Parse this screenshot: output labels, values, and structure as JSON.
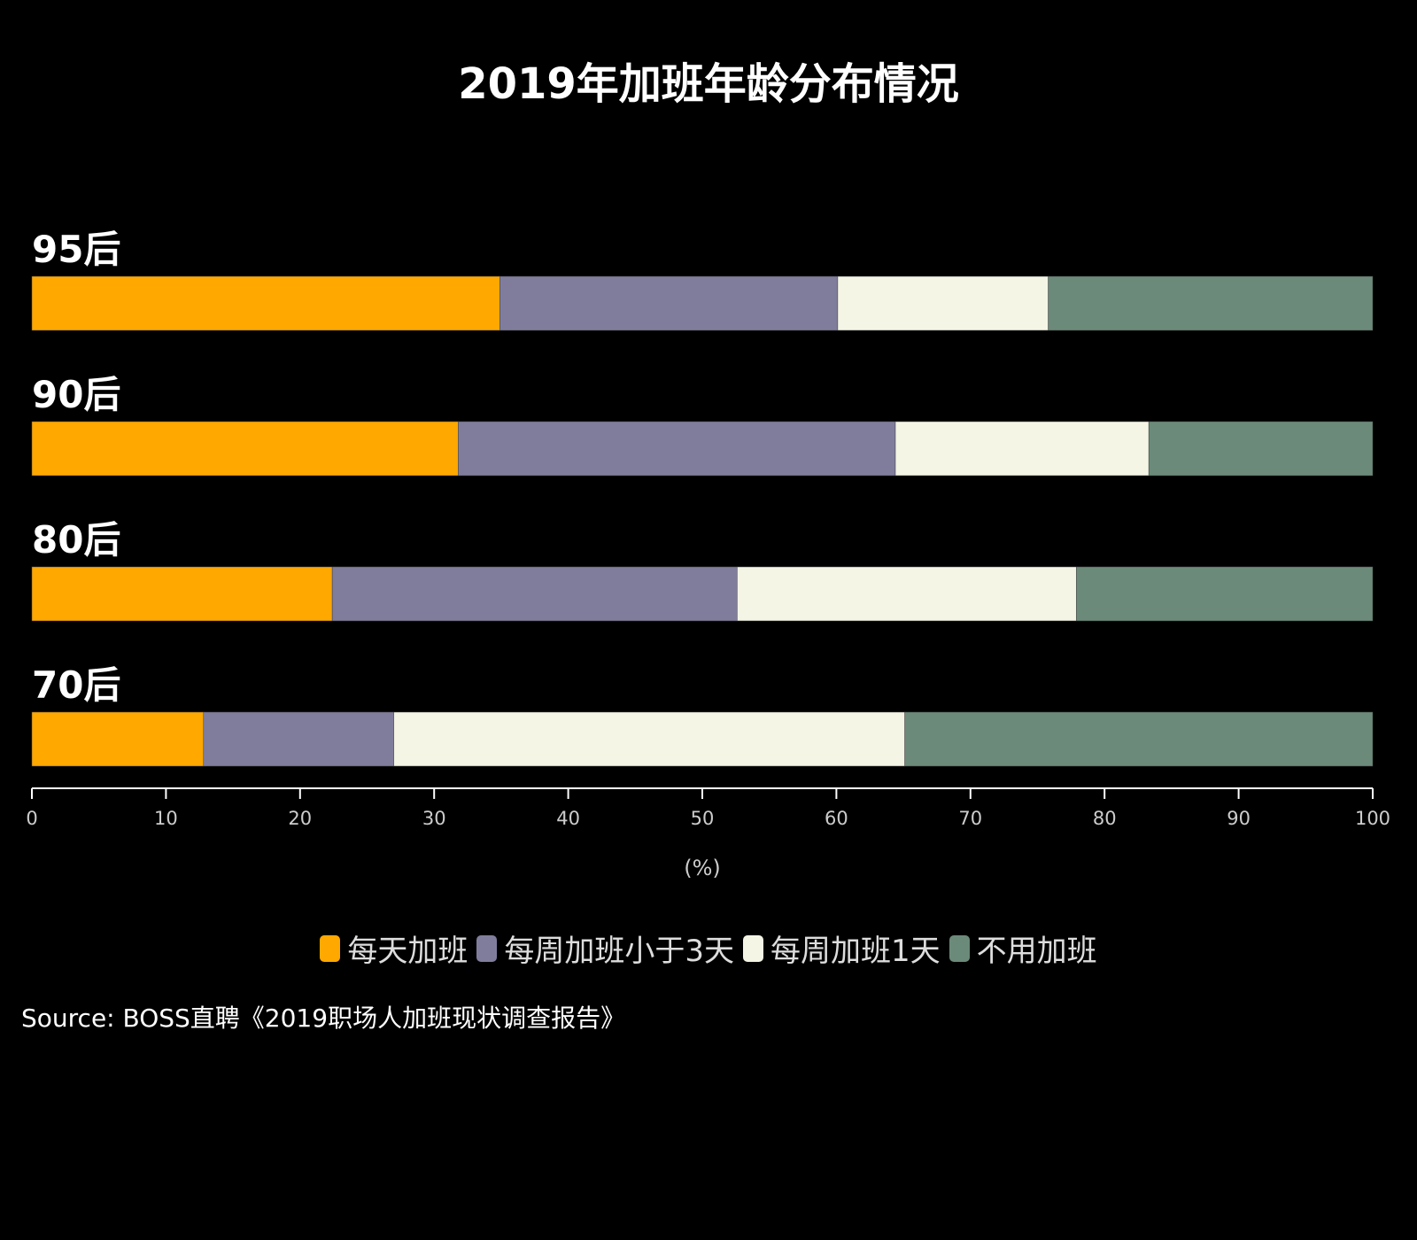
{
  "chart_data": {
    "type": "bar",
    "orientation": "horizontal",
    "stacked": true,
    "title": "2019年加班年龄分布情况",
    "xlabel": "(%)",
    "xlim": [
      0,
      100
    ],
    "xticks": [
      0,
      10,
      20,
      30,
      40,
      50,
      60,
      70,
      80,
      90,
      100
    ],
    "categories": [
      "95后",
      "90后",
      "80后",
      "70后"
    ],
    "series": [
      {
        "name": "每天加班",
        "color": "#FFA800",
        "values": [
          34.9,
          31.8,
          22.4,
          12.8
        ]
      },
      {
        "name": "每周加班小于3天",
        "color": "#807D9C",
        "values": [
          25.2,
          32.6,
          30.2,
          14.2
        ]
      },
      {
        "name": "每周加班1天",
        "color": "#F5F5E6",
        "values": [
          15.7,
          18.9,
          25.3,
          38.1
        ]
      },
      {
        "name": "不用加班",
        "color": "#6B8A7A",
        "values": [
          24.2,
          16.7,
          22.1,
          34.9
        ]
      }
    ],
    "legend_position": "bottom",
    "grid": false
  },
  "source": "Source: BOSS直聘《2019职场人加班现状调查报告》"
}
